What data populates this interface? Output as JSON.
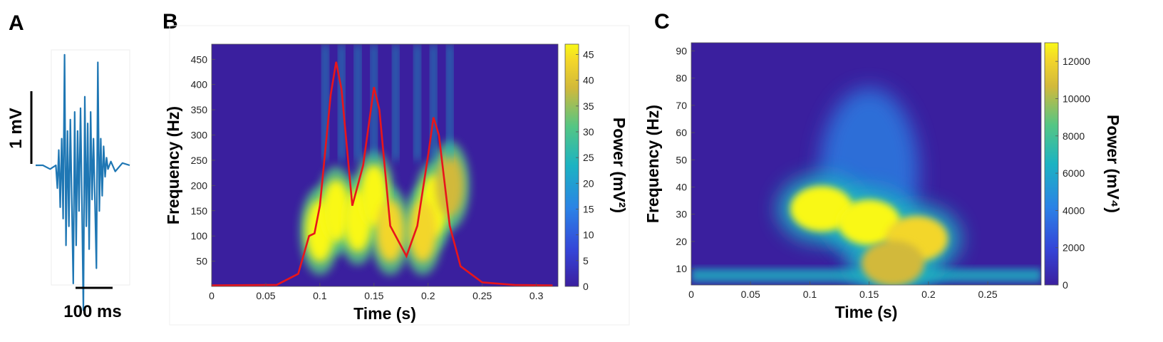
{
  "panels": {
    "a": {
      "letter": "A",
      "scale_v": "1 mV",
      "scale_t": "100 ms"
    },
    "b": {
      "letter": "B"
    },
    "c": {
      "letter": "C"
    }
  },
  "colors": {
    "trace": "#1f77b4",
    "envelope": "#e8151b",
    "cmap_low": "#3a1f9e",
    "cmap_mid": "#1fb8a8",
    "cmap_high": "#f8f516"
  },
  "chart_data": [
    {
      "type": "line",
      "panel": "A",
      "title": "",
      "series": [
        {
          "t_ms": [
            0,
            10,
            20,
            28,
            30,
            32,
            34,
            36,
            38,
            40,
            42,
            44,
            46,
            48,
            50,
            52,
            54,
            56,
            58,
            60,
            62,
            64,
            66,
            68,
            70,
            72,
            74,
            76,
            78,
            80,
            82,
            84,
            86,
            88,
            90,
            92,
            94,
            96,
            98,
            100,
            104,
            110,
            120,
            130
          ],
          "mv": [
            0,
            0,
            -0.05,
            0,
            -0.3,
            0.2,
            -0.55,
            0.35,
            -0.7,
            1.45,
            -1.05,
            0.45,
            -0.8,
            0.6,
            -0.5,
            -1.55,
            0.7,
            -1.05,
            0.45,
            -0.6,
            0.75,
            -0.5,
            -1.9,
            0.9,
            -0.8,
            0.55,
            -1.1,
            0.7,
            -0.45,
            0.35,
            -0.5,
            -1.35,
            1.35,
            -0.6,
            0.35,
            -0.4,
            0.25,
            -0.15,
            0.1,
            -0.05,
            0.05,
            -0.08,
            0.03,
            0
          ]
        }
      ]
    },
    {
      "type": "heatmap",
      "panel": "B",
      "title": "",
      "xlabel": "Time (s)",
      "ylabel": "Frequency (Hz)",
      "xlim": [
        0,
        0.32
      ],
      "ylim": [
        0,
        480
      ],
      "xticks": [
        "0",
        "0.05",
        "0.1",
        "0.15",
        "0.2",
        "0.25",
        "0.3"
      ],
      "yticks": [
        "50",
        "100",
        "150",
        "200",
        "250",
        "300",
        "350",
        "400",
        "450"
      ],
      "colorbar": {
        "label": "Power (mV²)",
        "range": [
          0,
          47
        ],
        "ticks": [
          "0",
          "5",
          "10",
          "15",
          "20",
          "25",
          "30",
          "35",
          "40",
          "45"
        ]
      },
      "blobs": [
        {
          "t": 0.1,
          "f": 110,
          "power": 45
        },
        {
          "t": 0.115,
          "f": 150,
          "power": 47
        },
        {
          "t": 0.135,
          "f": 130,
          "power": 45
        },
        {
          "t": 0.15,
          "f": 180,
          "power": 46
        },
        {
          "t": 0.165,
          "f": 110,
          "power": 40
        },
        {
          "t": 0.205,
          "f": 160,
          "power": 46
        },
        {
          "t": 0.195,
          "f": 110,
          "power": 42
        },
        {
          "t": 0.22,
          "f": 200,
          "power": 38
        }
      ],
      "overlay_line": {
        "t": [
          0,
          0.06,
          0.08,
          0.09,
          0.095,
          0.1,
          0.11,
          0.115,
          0.12,
          0.13,
          0.14,
          0.15,
          0.155,
          0.165,
          0.18,
          0.19,
          0.2,
          0.205,
          0.21,
          0.22,
          0.23,
          0.25,
          0.28,
          0.315
        ],
        "f": [
          2,
          3,
          25,
          100,
          105,
          160,
          380,
          445,
          390,
          160,
          240,
          395,
          350,
          120,
          60,
          120,
          260,
          335,
          300,
          120,
          40,
          8,
          3,
          2
        ]
      }
    },
    {
      "type": "heatmap",
      "panel": "C",
      "title": "",
      "xlabel": "Time (s)",
      "ylabel": "Frequency (Hz)",
      "xlim": [
        0,
        0.295
      ],
      "ylim": [
        4,
        93
      ],
      "xticks": [
        "0",
        "0.05",
        "0.1",
        "0.15",
        "0.2",
        "0.25"
      ],
      "yticks": [
        "10",
        "20",
        "30",
        "40",
        "50",
        "60",
        "70",
        "80",
        "90"
      ],
      "colorbar": {
        "label": "Power (mV⁴)",
        "range": [
          0,
          13000
        ],
        "ticks": [
          "0",
          "2000",
          "4000",
          "6000",
          "8000",
          "10000",
          "12000"
        ]
      },
      "blobs": [
        {
          "t": 0.11,
          "f": 32,
          "power": 13000
        },
        {
          "t": 0.15,
          "f": 27,
          "power": 12500
        },
        {
          "t": 0.19,
          "f": 21,
          "power": 12000
        },
        {
          "t": 0.17,
          "f": 12,
          "power": 9000
        }
      ]
    }
  ]
}
